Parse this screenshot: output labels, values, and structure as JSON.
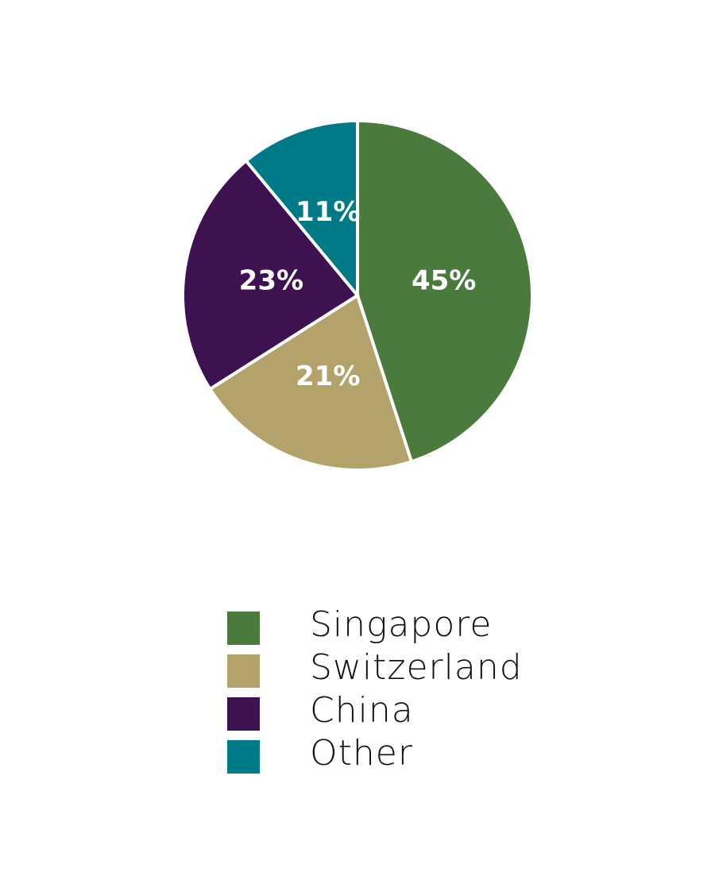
{
  "chart_data": {
    "type": "pie",
    "categories": [
      "Singapore",
      "Switzerland",
      "China",
      "Other"
    ],
    "values": [
      45,
      21,
      23,
      11
    ],
    "value_labels": [
      "45%",
      "21%",
      "23%",
      "11%"
    ],
    "colors": [
      "#4a7a3c",
      "#b3a36b",
      "#3e1150",
      "#007a87"
    ],
    "legend": "bottom"
  }
}
